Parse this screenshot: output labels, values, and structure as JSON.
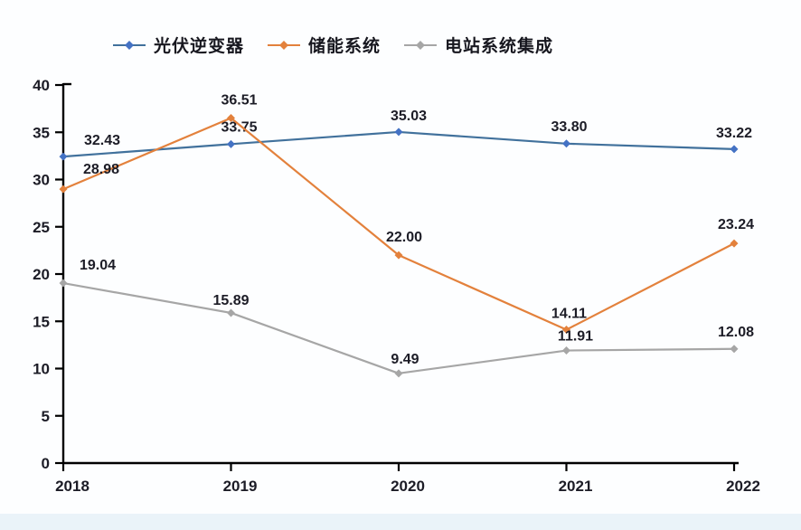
{
  "chart_data": {
    "type": "line",
    "categories": [
      "2018",
      "2019",
      "2020",
      "2021",
      "2022"
    ],
    "series": [
      {
        "name": "光伏逆变器",
        "color": "#41719c",
        "marker_color": "#4472c4",
        "values": [
          32.43,
          33.75,
          35.03,
          33.8,
          33.22
        ]
      },
      {
        "name": "储能系统",
        "color": "#e3813c",
        "marker_color": "#e3813c",
        "values": [
          28.98,
          36.51,
          22.0,
          14.11,
          23.24
        ]
      },
      {
        "name": "电站系统集成",
        "color": "#a6a6a6",
        "marker_color": "#a6a6a6",
        "values": [
          19.04,
          15.89,
          9.49,
          11.91,
          12.08
        ]
      }
    ],
    "ylim": [
      0,
      40
    ],
    "yticks": [
      0,
      5,
      10,
      15,
      20,
      25,
      30,
      35,
      40
    ],
    "grid": false,
    "legend_position": "top",
    "marker": "diamond",
    "value_label_decimals": 2,
    "axis_color": "#000000",
    "text_color": "#1c1c26"
  }
}
